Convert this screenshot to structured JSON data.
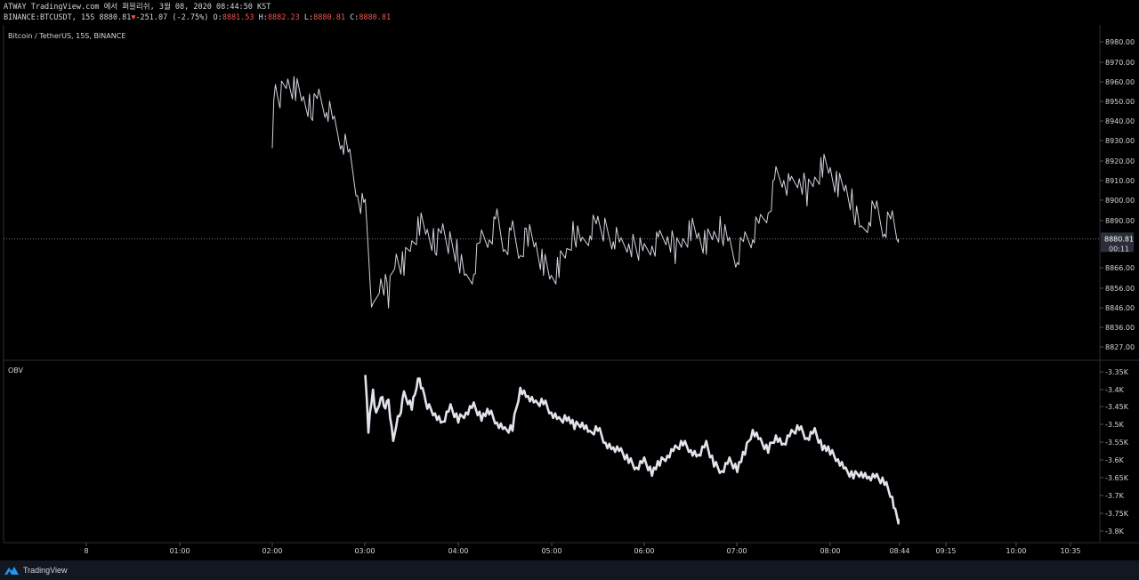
{
  "header": {
    "attribution": "ATWAY TradingView.com 에서 퍼블리쉬, 3월 08, 2020 08:44:50 KST",
    "symbol": "BINANCE:BTCUSDT, 15S",
    "last": "8880.81",
    "change_arrow": "▼",
    "change": "-251.07 (-2.75%)",
    "o_label": "O:",
    "o_value": "8881.53",
    "h_label": "H:",
    "h_value": "8882.23",
    "l_label": "L:",
    "l_value": "8880.81",
    "c_label": "C:",
    "c_value": "8880.81"
  },
  "price_pane": {
    "legend": "Bitcoin / TetherUS, 15S, BINANCE",
    "last_price_label": "8880.81",
    "countdown": "00:11",
    "axis_labels": [
      "8980.00",
      "8970.00",
      "8960.00",
      "8950.00",
      "8940.00",
      "8930.00",
      "8920.00",
      "8910.00",
      "8900.00",
      "8890.00",
      "8866.00",
      "8856.00",
      "8846.00",
      "8836.00",
      "8827.00"
    ]
  },
  "obv_pane": {
    "legend": "OBV",
    "axis_labels": [
      "-3.35K",
      "-3.4K",
      "-3.45K",
      "-3.5K",
      "-3.55K",
      "-3.6K",
      "-3.65K",
      "-3.7K",
      "-3.75K",
      "-3.8K"
    ]
  },
  "time_axis": {
    "labels": [
      "8",
      "01:00",
      "02:00",
      "03:00",
      "04:00",
      "05:00",
      "06:00",
      "07:00",
      "08:00",
      "08:44",
      "09:15",
      "10:00",
      "10:35"
    ]
  },
  "footer": {
    "brand": "TradingView"
  },
  "colors": {
    "background": "#000000",
    "line": "#d1d4dc",
    "down": "#ef5350",
    "footer": "#131722",
    "logo": "#2196f3"
  },
  "chart_data": [
    {
      "type": "line",
      "series": [
        {
          "x": [
            "02:00",
            "02:02",
            "02:05",
            "02:10",
            "02:15",
            "02:20",
            "02:25",
            "02:30",
            "02:35",
            "02:40",
            "02:45",
            "02:50",
            "02:55",
            "03:00",
            "03:02",
            "03:05",
            "03:10",
            "03:15",
            "03:20",
            "03:25",
            "03:30",
            "03:35",
            "03:40",
            "03:45",
            "03:50",
            "04:00",
            "04:05",
            "04:10",
            "04:15",
            "04:20",
            "04:25",
            "04:30",
            "04:35",
            "04:40",
            "04:45",
            "04:50",
            "04:55",
            "05:00",
            "05:05",
            "05:10",
            "05:15",
            "05:20",
            "05:25",
            "05:30",
            "05:40",
            "05:45",
            "05:50",
            "06:00",
            "06:05",
            "06:10",
            "06:15",
            "06:20",
            "06:25",
            "06:30",
            "06:35",
            "06:40",
            "06:45",
            "06:50",
            "06:55",
            "07:00",
            "07:05",
            "07:10",
            "07:15",
            "07:20",
            "07:25",
            "07:30",
            "07:35",
            "07:40",
            "07:45",
            "07:50",
            "07:55",
            "08:00",
            "08:05",
            "08:10",
            "08:15",
            "08:20",
            "08:25",
            "08:30",
            "08:35",
            "08:40",
            "08:44"
          ],
          "y": [
            8935,
            8960,
            8955,
            8962,
            8958,
            8952,
            8948,
            8955,
            8950,
            8940,
            8932,
            8922,
            8905,
            8895,
            8875,
            8840,
            8860,
            8852,
            8872,
            8868,
            8878,
            8888,
            8883,
            8878,
            8885,
            8872,
            8858,
            8865,
            8880,
            8882,
            8890,
            8876,
            8883,
            8872,
            8884,
            8878,
            8868,
            8860,
            8866,
            8873,
            8885,
            8878,
            8886,
            8888,
            8882,
            8876,
            8880,
            8872,
            8878,
            8878,
            8882,
            8875,
            8880,
            8886,
            8882,
            8878,
            8882,
            8886,
            8878,
            8872,
            8880,
            8883,
            8888,
            8896,
            8912,
            8912,
            8906,
            8912,
            8905,
            8912,
            8919,
            8916,
            8908,
            8906,
            8898,
            8884,
            8893,
            8896,
            8886,
            8890,
            8880.81
          ]
        }
      ],
      "ylim": [
        8820,
        8990
      ]
    },
    {
      "type": "line",
      "series": [
        {
          "x": [
            "03:00",
            "03:02",
            "03:05",
            "03:07",
            "03:10",
            "03:12",
            "03:15",
            "03:18",
            "03:20",
            "03:22",
            "03:25",
            "03:30",
            "03:33",
            "03:35",
            "03:38",
            "03:40",
            "03:45",
            "03:50",
            "03:55",
            "04:00",
            "04:05",
            "04:10",
            "04:15",
            "04:20",
            "04:25",
            "04:30",
            "04:35",
            "04:40",
            "04:45",
            "04:50",
            "04:55",
            "05:00",
            "05:05",
            "05:10",
            "05:15",
            "05:20",
            "05:25",
            "05:30",
            "05:35",
            "05:40",
            "05:45",
            "05:50",
            "05:55",
            "06:00",
            "06:05",
            "06:10",
            "06:15",
            "06:20",
            "06:25",
            "06:30",
            "06:35",
            "06:40",
            "06:45",
            "06:50",
            "06:55",
            "07:00",
            "07:05",
            "07:10",
            "07:15",
            "07:20",
            "07:25",
            "07:30",
            "07:35",
            "07:40",
            "07:45",
            "07:50",
            "07:55",
            "08:00",
            "08:05",
            "08:10",
            "08:15",
            "08:20",
            "08:25",
            "08:30",
            "08:35",
            "08:40",
            "08:42",
            "08:44"
          ],
          "y": [
            -3.355,
            -3.52,
            -3.41,
            -3.48,
            -3.42,
            -3.45,
            -3.44,
            -3.56,
            -3.5,
            -3.48,
            -3.42,
            -3.45,
            -3.4,
            -3.38,
            -3.43,
            -3.45,
            -3.47,
            -3.5,
            -3.46,
            -3.49,
            -3.47,
            -3.45,
            -3.48,
            -3.47,
            -3.5,
            -3.52,
            -3.51,
            -3.4,
            -3.43,
            -3.45,
            -3.44,
            -3.47,
            -3.49,
            -3.48,
            -3.51,
            -3.5,
            -3.53,
            -3.51,
            -3.55,
            -3.57,
            -3.58,
            -3.6,
            -3.62,
            -3.6,
            -3.63,
            -3.61,
            -3.59,
            -3.57,
            -3.55,
            -3.57,
            -3.59,
            -3.56,
            -3.61,
            -3.63,
            -3.6,
            -3.62,
            -3.58,
            -3.52,
            -3.55,
            -3.57,
            -3.53,
            -3.56,
            -3.53,
            -3.51,
            -3.54,
            -3.52,
            -3.56,
            -3.58,
            -3.6,
            -3.63,
            -3.64,
            -3.63,
            -3.65,
            -3.65,
            -3.66,
            -3.7,
            -3.74,
            -3.76
          ]
        }
      ],
      "ylim": [
        -3.82,
        -3.33
      ]
    }
  ]
}
